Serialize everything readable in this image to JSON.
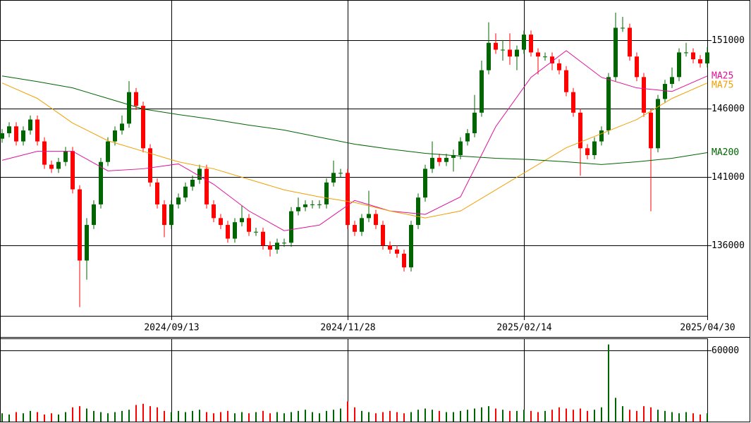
{
  "chart_data": {
    "type": "candlestick",
    "categories": [
      null,
      null,
      null,
      null,
      null,
      null,
      null,
      null,
      null,
      null,
      null,
      null,
      null,
      null,
      null,
      null,
      null,
      null,
      null,
      null,
      null,
      null,
      null,
      null,
      "2024/09/13",
      null,
      null,
      null,
      null,
      null,
      null,
      null,
      null,
      null,
      null,
      null,
      null,
      null,
      null,
      null,
      null,
      null,
      null,
      null,
      null,
      null,
      null,
      null,
      null,
      "2024/11/28",
      null,
      null,
      null,
      null,
      null,
      null,
      null,
      null,
      null,
      null,
      null,
      null,
      null,
      null,
      null,
      null,
      null,
      null,
      null,
      null,
      null,
      null,
      null,
      null,
      "2025/02/14",
      null,
      null,
      null,
      null,
      null,
      null,
      null,
      null,
      null,
      null,
      null,
      null,
      null,
      null,
      null,
      null,
      null,
      null,
      null,
      null,
      null,
      null,
      null,
      null,
      null,
      "2025/04/30"
    ],
    "open": [
      143800,
      144200,
      144700,
      143600,
      144400,
      145200,
      143600,
      141900,
      141600,
      142100,
      142900,
      140100,
      134900,
      137500,
      139000,
      142100,
      143600,
      144400,
      144900,
      147200,
      146200,
      143100,
      140600,
      139000,
      137500,
      139000,
      139500,
      140300,
      140800,
      141600,
      139000,
      138000,
      137500,
      136500,
      137700,
      138000,
      137000,
      137000,
      136000,
      135700,
      136200,
      136200,
      138500,
      138800,
      139000,
      139000,
      139000,
      140600,
      141300,
      141300,
      137500,
      137000,
      138000,
      138300,
      137500,
      136000,
      135700,
      135400,
      134400,
      137500,
      139500,
      141600,
      142400,
      142100,
      142400,
      142600,
      143600,
      144200,
      145700,
      148800,
      150800,
      150300,
      150300,
      149800,
      150300,
      151400,
      150100,
      149800,
      149800,
      149300,
      148800,
      147200,
      145700,
      143100,
      142600,
      143600,
      144400,
      148300,
      151900,
      151900,
      149800,
      148300,
      145700,
      143100,
      146700,
      147800,
      148300,
      150100,
      150100,
      149600,
      149300
    ],
    "high": [
      144500,
      145000,
      145000,
      144700,
      145500,
      145500,
      143900,
      142200,
      142400,
      143200,
      143200,
      140400,
      138000,
      139300,
      142400,
      143900,
      144700,
      145500,
      148000,
      147500,
      146500,
      143400,
      140900,
      139300,
      139300,
      139800,
      140600,
      141100,
      141900,
      141900,
      139300,
      138300,
      137800,
      138000,
      138900,
      138300,
      137300,
      137300,
      136300,
      136500,
      136500,
      138800,
      139500,
      139300,
      139300,
      139300,
      140900,
      142200,
      141600,
      141600,
      137800,
      138300,
      140000,
      138600,
      137800,
      136300,
      136000,
      135700,
      137800,
      139800,
      141900,
      143600,
      142700,
      142700,
      143000,
      143900,
      144500,
      147000,
      149500,
      152300,
      151500,
      151000,
      151500,
      150600,
      151700,
      151700,
      150400,
      150100,
      150100,
      149600,
      149100,
      147500,
      146000,
      143400,
      143900,
      144700,
      148600,
      153000,
      152700,
      152200,
      150100,
      148600,
      146000,
      147000,
      148100,
      149000,
      150400,
      150800,
      150400,
      149900,
      150500
    ],
    "low": [
      143500,
      143900,
      143300,
      143300,
      144100,
      143300,
      141600,
      141300,
      141300,
      141800,
      139800,
      131500,
      133500,
      137200,
      138700,
      141800,
      143300,
      144100,
      144600,
      145900,
      142800,
      140300,
      138700,
      136600,
      137200,
      138700,
      139200,
      140000,
      140500,
      138700,
      137700,
      137200,
      136200,
      136200,
      137400,
      136700,
      136700,
      135700,
      135200,
      135400,
      135900,
      135900,
      138200,
      138500,
      138700,
      138700,
      138700,
      140300,
      141000,
      137200,
      136700,
      136700,
      137700,
      137200,
      135700,
      135400,
      135100,
      134100,
      134100,
      137200,
      139200,
      141300,
      141800,
      141800,
      141400,
      142300,
      143300,
      143900,
      145400,
      148500,
      150000,
      149500,
      149200,
      148800,
      150000,
      149800,
      148500,
      149500,
      148800,
      148500,
      146900,
      145400,
      141100,
      142300,
      142300,
      143300,
      144100,
      148000,
      151600,
      149500,
      148000,
      145400,
      138500,
      142800,
      146400,
      147500,
      148000,
      149800,
      149300,
      149000,
      149000
    ],
    "close": [
      144200,
      144700,
      143600,
      144400,
      145200,
      143600,
      141900,
      141600,
      142100,
      142900,
      140100,
      134900,
      137500,
      139000,
      142100,
      143600,
      144400,
      144900,
      147200,
      146200,
      143100,
      140600,
      139000,
      137500,
      139000,
      139500,
      140300,
      140800,
      141600,
      139000,
      138000,
      137500,
      136500,
      137700,
      138000,
      137000,
      137000,
      136000,
      135700,
      136200,
      136200,
      138500,
      138800,
      139000,
      139000,
      139000,
      140600,
      141300,
      141300,
      137500,
      137000,
      138000,
      138300,
      137500,
      136000,
      135700,
      135400,
      134400,
      137500,
      139500,
      141600,
      142400,
      142100,
      142400,
      142600,
      143600,
      144200,
      145700,
      148800,
      150800,
      150300,
      150300,
      149800,
      150300,
      151400,
      150100,
      149800,
      149800,
      149300,
      148800,
      147200,
      145700,
      143100,
      142600,
      143600,
      144400,
      148300,
      151900,
      151900,
      149800,
      148300,
      145700,
      143100,
      146700,
      147800,
      148300,
      150100,
      150100,
      149600,
      149300,
      150100
    ],
    "up_color": "#006400",
    "down_color": "#ff0000",
    "ylim": [
      130860,
      153930
    ],
    "yticks": [
      136000,
      141000,
      146000,
      151000
    ],
    "grid": true,
    "moving_averages": [
      {
        "name": "MA25",
        "color": "#e0119a",
        "x": [
          0,
          5,
          10,
          15,
          20,
          25,
          30,
          35,
          40,
          45,
          50,
          55,
          60,
          65,
          70,
          75,
          80,
          85,
          90,
          95,
          100
        ],
        "values": [
          142220,
          142880,
          142880,
          141450,
          141600,
          141960,
          140470,
          138520,
          137080,
          137490,
          139290,
          138520,
          138270,
          139550,
          144680,
          148280,
          150230,
          148280,
          147510,
          147250,
          148380
        ]
      },
      {
        "name": "MA75",
        "color": "#f0a000",
        "x": [
          0,
          5,
          10,
          15,
          20,
          25,
          30,
          35,
          40,
          45,
          50,
          55,
          60,
          65,
          70,
          75,
          80,
          85,
          90,
          95,
          100
        ],
        "values": [
          147870,
          146740,
          144940,
          143650,
          142880,
          142110,
          141600,
          140830,
          140060,
          139550,
          139140,
          138520,
          138010,
          138520,
          140060,
          141600,
          143140,
          144170,
          145200,
          146740,
          147870
        ]
      },
      {
        "name": "MA200",
        "color": "#006400",
        "x": [
          0,
          5,
          10,
          15,
          20,
          25,
          30,
          35,
          40,
          45,
          50,
          55,
          60,
          65,
          70,
          75,
          80,
          85,
          90,
          95,
          100
        ],
        "values": [
          148380,
          147970,
          147510,
          146740,
          145970,
          145560,
          145200,
          144790,
          144430,
          143910,
          143400,
          143040,
          142730,
          142530,
          142370,
          142270,
          142110,
          141910,
          142110,
          142370,
          142780
        ]
      }
    ],
    "volume": {
      "values": [
        7000,
        6000,
        8000,
        7000,
        9000,
        8000,
        6000,
        7000,
        6000,
        8000,
        12000,
        13000,
        11000,
        9000,
        8000,
        7000,
        8000,
        9000,
        10000,
        14000,
        15000,
        13000,
        12000,
        9000,
        8000,
        9000,
        8000,
        9000,
        10000,
        8000,
        7000,
        8000,
        9000,
        7000,
        8000,
        7000,
        8000,
        9000,
        7000,
        8000,
        7000,
        8000,
        9000,
        10000,
        8000,
        7000,
        9000,
        10000,
        11000,
        17000,
        12000,
        9000,
        8000,
        7000,
        8000,
        9000,
        8000,
        7000,
        8000,
        10000,
        11000,
        10000,
        9000,
        8000,
        8000,
        9000,
        10000,
        11000,
        12000,
        13000,
        11000,
        10000,
        9000,
        9000,
        10000,
        9000,
        8000,
        9000,
        10000,
        12000,
        11000,
        10000,
        11000,
        9000,
        10000,
        12000,
        65000,
        20000,
        13000,
        10000,
        9000,
        13000,
        12000,
        10000,
        9000,
        8000,
        7000,
        8000,
        7000,
        6000,
        7000
      ],
      "ylim": [
        0,
        70100
      ],
      "yticks": [
        60000
      ]
    }
  }
}
